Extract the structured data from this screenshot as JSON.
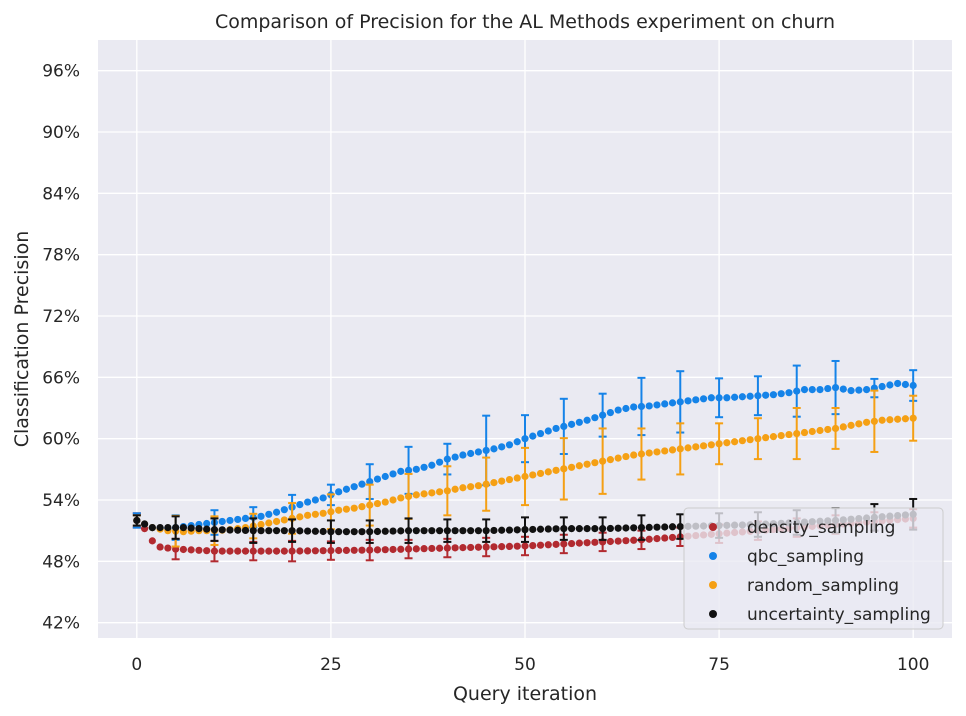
{
  "chart_data": {
    "type": "scatter",
    "title": "Comparison of Precision for the AL Methods experiment on churn",
    "xlabel": "Query iteration",
    "ylabel": "Classification Precision",
    "xlim": [
      -5,
      105
    ],
    "ylim": [
      0.405,
      0.99
    ],
    "xticks": [
      0,
      25,
      50,
      75,
      100
    ],
    "xtick_labels": [
      "0",
      "25",
      "50",
      "75",
      "100"
    ],
    "yticks": [
      0.42,
      0.48,
      0.54,
      0.6,
      0.66,
      0.72,
      0.78,
      0.84,
      0.9,
      0.96
    ],
    "ytick_labels": [
      "42%",
      "48%",
      "54%",
      "60%",
      "66%",
      "72%",
      "78%",
      "84%",
      "90%",
      "96%"
    ],
    "grid": true,
    "legend_position": "bottom-right",
    "error_bars_every": 5,
    "series": [
      {
        "name": "density_sampling",
        "color": "#b22a30",
        "anchors": [
          [
            0,
            0.52
          ],
          [
            1,
            0.512
          ],
          [
            2,
            0.5
          ],
          [
            3,
            0.494
          ],
          [
            5,
            0.492
          ],
          [
            10,
            0.49
          ],
          [
            20,
            0.49
          ],
          [
            30,
            0.491
          ],
          [
            40,
            0.493
          ],
          [
            45,
            0.494
          ],
          [
            50,
            0.495
          ],
          [
            55,
            0.497
          ],
          [
            60,
            0.499
          ],
          [
            65,
            0.501
          ],
          [
            70,
            0.504
          ],
          [
            75,
            0.507
          ],
          [
            80,
            0.51
          ],
          [
            85,
            0.513
          ],
          [
            90,
            0.516
          ],
          [
            95,
            0.519
          ],
          [
            100,
            0.522
          ]
        ],
        "err": [
          [
            0,
            0.007
          ],
          [
            5,
            0.01
          ],
          [
            10,
            0.01
          ],
          [
            15,
            0.009
          ],
          [
            20,
            0.01
          ],
          [
            25,
            0.009
          ],
          [
            30,
            0.01
          ],
          [
            35,
            0.009
          ],
          [
            40,
            0.009
          ],
          [
            45,
            0.009
          ],
          [
            50,
            0.009
          ],
          [
            55,
            0.009
          ],
          [
            60,
            0.009
          ],
          [
            65,
            0.009
          ],
          [
            70,
            0.009
          ],
          [
            75,
            0.009
          ],
          [
            80,
            0.009
          ],
          [
            85,
            0.009
          ],
          [
            90,
            0.009
          ],
          [
            95,
            0.009
          ],
          [
            100,
            0.009
          ]
        ]
      },
      {
        "name": "qbc_sampling",
        "color": "#1583e8",
        "anchors": [
          [
            0,
            0.52
          ],
          [
            2,
            0.513
          ],
          [
            4,
            0.512
          ],
          [
            6,
            0.514
          ],
          [
            8,
            0.516
          ],
          [
            10,
            0.518
          ],
          [
            12,
            0.52
          ],
          [
            14,
            0.522
          ],
          [
            16,
            0.524
          ],
          [
            18,
            0.528
          ],
          [
            20,
            0.533
          ],
          [
            22,
            0.538
          ],
          [
            24,
            0.542
          ],
          [
            26,
            0.548
          ],
          [
            28,
            0.553
          ],
          [
            30,
            0.558
          ],
          [
            32,
            0.563
          ],
          [
            34,
            0.568
          ],
          [
            36,
            0.57
          ],
          [
            38,
            0.574
          ],
          [
            40,
            0.58
          ],
          [
            42,
            0.584
          ],
          [
            44,
            0.587
          ],
          [
            46,
            0.59
          ],
          [
            48,
            0.594
          ],
          [
            50,
            0.6
          ],
          [
            52,
            0.605
          ],
          [
            54,
            0.61
          ],
          [
            56,
            0.614
          ],
          [
            58,
            0.618
          ],
          [
            60,
            0.623
          ],
          [
            62,
            0.628
          ],
          [
            64,
            0.631
          ],
          [
            66,
            0.632
          ],
          [
            68,
            0.634
          ],
          [
            70,
            0.636
          ],
          [
            72,
            0.638
          ],
          [
            74,
            0.64
          ],
          [
            76,
            0.64
          ],
          [
            78,
            0.641
          ],
          [
            80,
            0.642
          ],
          [
            82,
            0.643
          ],
          [
            84,
            0.645
          ],
          [
            86,
            0.648
          ],
          [
            88,
            0.648
          ],
          [
            90,
            0.65
          ],
          [
            92,
            0.647
          ],
          [
            94,
            0.648
          ],
          [
            96,
            0.651
          ],
          [
            98,
            0.654
          ],
          [
            100,
            0.652
          ]
        ],
        "err": [
          [
            0,
            0.007
          ],
          [
            5,
            0.012
          ],
          [
            10,
            0.012
          ],
          [
            15,
            0.01
          ],
          [
            20,
            0.012
          ],
          [
            25,
            0.01
          ],
          [
            30,
            0.017
          ],
          [
            35,
            0.023
          ],
          [
            40,
            0.015
          ],
          [
            45,
            0.034
          ],
          [
            50,
            0.023
          ],
          [
            55,
            0.027
          ],
          [
            60,
            0.021
          ],
          [
            65,
            0.028
          ],
          [
            70,
            0.03
          ],
          [
            75,
            0.019
          ],
          [
            80,
            0.019
          ],
          [
            85,
            0.025
          ],
          [
            90,
            0.026
          ],
          [
            95,
            0.009
          ],
          [
            100,
            0.015
          ]
        ]
      },
      {
        "name": "random_sampling",
        "color": "#f5a014",
        "anchors": [
          [
            0,
            0.52
          ],
          [
            2,
            0.513
          ],
          [
            4,
            0.51
          ],
          [
            6,
            0.509
          ],
          [
            8,
            0.51
          ],
          [
            10,
            0.51
          ],
          [
            12,
            0.511
          ],
          [
            14,
            0.513
          ],
          [
            16,
            0.516
          ],
          [
            18,
            0.519
          ],
          [
            20,
            0.522
          ],
          [
            22,
            0.525
          ],
          [
            24,
            0.527
          ],
          [
            26,
            0.53
          ],
          [
            28,
            0.532
          ],
          [
            30,
            0.535
          ],
          [
            32,
            0.538
          ],
          [
            34,
            0.542
          ],
          [
            36,
            0.545
          ],
          [
            38,
            0.547
          ],
          [
            40,
            0.549
          ],
          [
            42,
            0.552
          ],
          [
            44,
            0.554
          ],
          [
            46,
            0.557
          ],
          [
            48,
            0.56
          ],
          [
            50,
            0.563
          ],
          [
            52,
            0.566
          ],
          [
            54,
            0.569
          ],
          [
            56,
            0.572
          ],
          [
            58,
            0.575
          ],
          [
            60,
            0.578
          ],
          [
            62,
            0.581
          ],
          [
            64,
            0.584
          ],
          [
            66,
            0.586
          ],
          [
            68,
            0.588
          ],
          [
            70,
            0.59
          ],
          [
            72,
            0.592
          ],
          [
            74,
            0.594
          ],
          [
            76,
            0.596
          ],
          [
            78,
            0.598
          ],
          [
            80,
            0.6
          ],
          [
            82,
            0.602
          ],
          [
            84,
            0.604
          ],
          [
            86,
            0.606
          ],
          [
            88,
            0.608
          ],
          [
            90,
            0.61
          ],
          [
            92,
            0.613
          ],
          [
            94,
            0.616
          ],
          [
            96,
            0.618
          ],
          [
            98,
            0.619
          ],
          [
            100,
            0.62
          ]
        ],
        "err": [
          [
            0,
            0.005
          ],
          [
            5,
            0.015
          ],
          [
            10,
            0.014
          ],
          [
            15,
            0.012
          ],
          [
            20,
            0.015
          ],
          [
            25,
            0.017
          ],
          [
            30,
            0.02
          ],
          [
            35,
            0.022
          ],
          [
            40,
            0.024
          ],
          [
            45,
            0.026
          ],
          [
            50,
            0.028
          ],
          [
            55,
            0.03
          ],
          [
            60,
            0.032
          ],
          [
            65,
            0.025
          ],
          [
            70,
            0.025
          ],
          [
            75,
            0.02
          ],
          [
            80,
            0.02
          ],
          [
            85,
            0.025
          ],
          [
            90,
            0.02
          ],
          [
            95,
            0.03
          ],
          [
            100,
            0.022
          ]
        ]
      },
      {
        "name": "uncertainty_sampling",
        "color": "#111111",
        "anchors": [
          [
            0,
            0.52
          ],
          [
            2,
            0.513
          ],
          [
            4,
            0.513
          ],
          [
            6,
            0.513
          ],
          [
            8,
            0.512
          ],
          [
            10,
            0.511
          ],
          [
            15,
            0.51
          ],
          [
            20,
            0.51
          ],
          [
            25,
            0.509
          ],
          [
            30,
            0.509
          ],
          [
            35,
            0.51
          ],
          [
            40,
            0.51
          ],
          [
            45,
            0.51
          ],
          [
            50,
            0.511
          ],
          [
            55,
            0.512
          ],
          [
            60,
            0.512
          ],
          [
            65,
            0.513
          ],
          [
            70,
            0.514
          ],
          [
            75,
            0.515
          ],
          [
            80,
            0.516
          ],
          [
            85,
            0.518
          ],
          [
            90,
            0.52
          ],
          [
            95,
            0.523
          ],
          [
            100,
            0.526
          ]
        ],
        "err": [
          [
            0,
            0.005
          ],
          [
            5,
            0.011
          ],
          [
            10,
            0.011
          ],
          [
            15,
            0.012
          ],
          [
            20,
            0.011
          ],
          [
            25,
            0.011
          ],
          [
            30,
            0.011
          ],
          [
            35,
            0.012
          ],
          [
            40,
            0.011
          ],
          [
            45,
            0.011
          ],
          [
            50,
            0.012
          ],
          [
            55,
            0.011
          ],
          [
            60,
            0.011
          ],
          [
            65,
            0.012
          ],
          [
            70,
            0.012
          ],
          [
            75,
            0.012
          ],
          [
            80,
            0.012
          ],
          [
            85,
            0.012
          ],
          [
            90,
            0.012
          ],
          [
            95,
            0.013
          ],
          [
            100,
            0.015
          ]
        ]
      }
    ]
  },
  "style": {
    "plot_background": "#eaeaf2",
    "grid_color": "#ffffff",
    "text_color": "#262626"
  }
}
